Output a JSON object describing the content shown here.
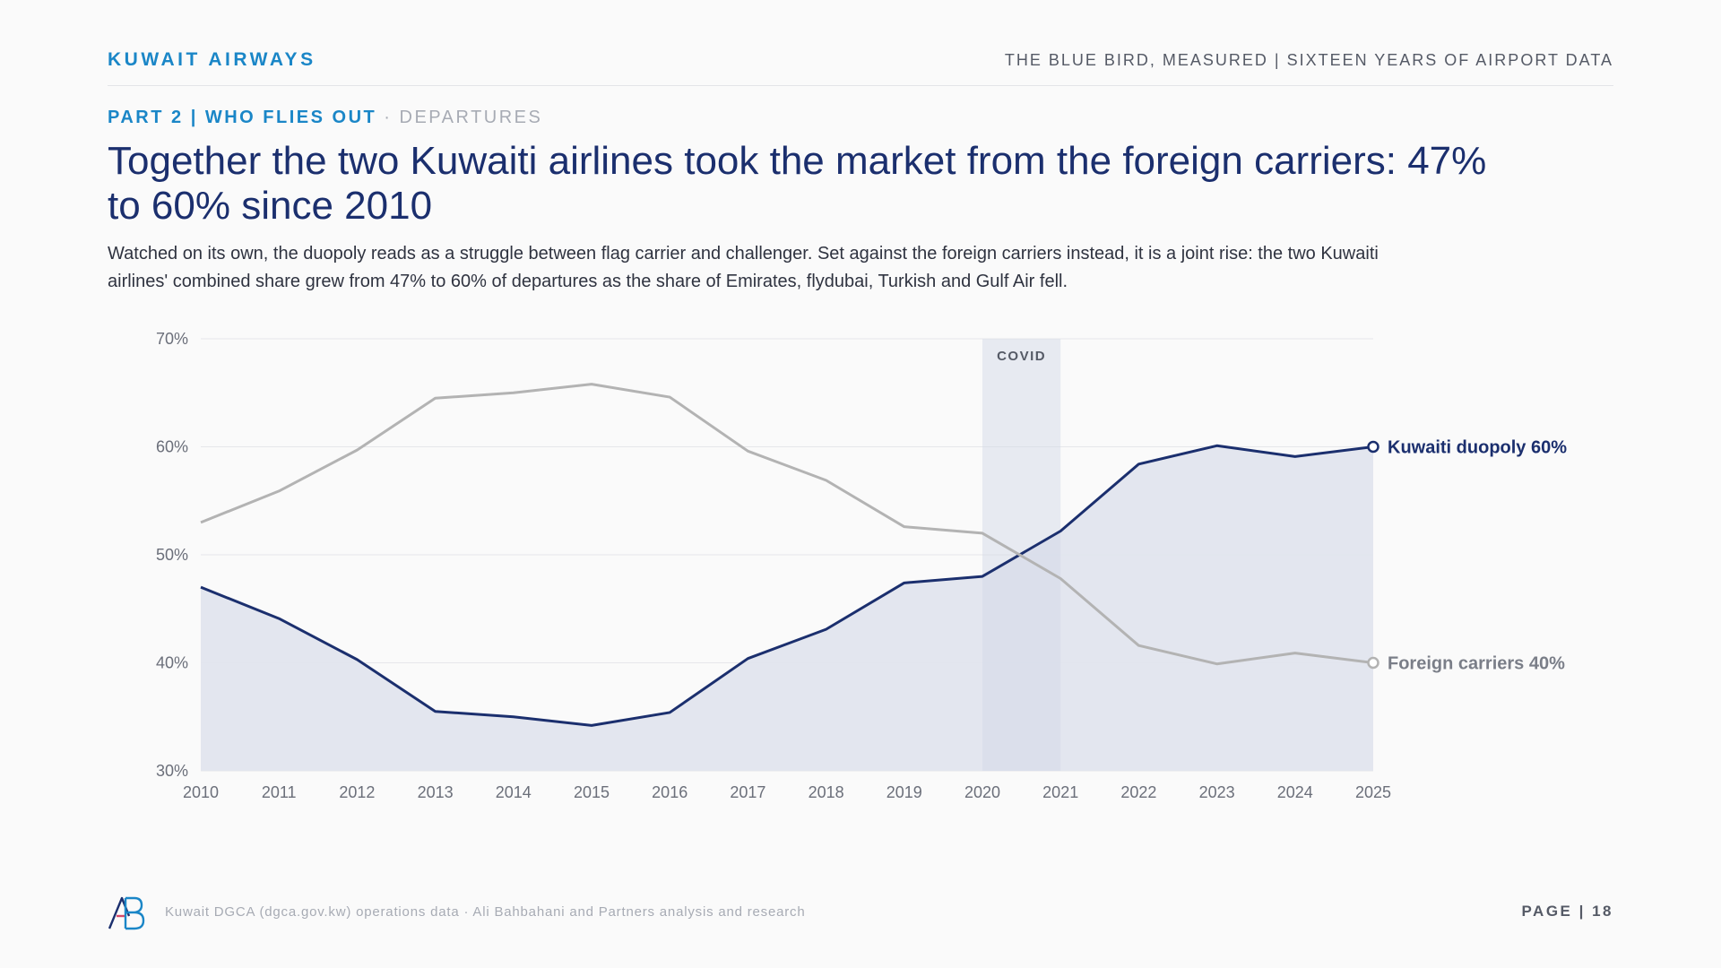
{
  "header": {
    "brand": "KUWAIT AIRWAYS",
    "series_title": "THE BLUE BIRD, MEASURED | SIXTEEN YEARS OF AIRPORT DATA"
  },
  "section": {
    "part": "PART 2 | WHO FLIES OUT",
    "separator": " · ",
    "sub": "DEPARTURES"
  },
  "headline": "Together the two Kuwaiti airlines took the market from the foreign carriers: 47% to 60% since 2010",
  "lede": "Watched on its own, the duopoly reads as a struggle between flag carrier and challenger. Set against the foreign carriers instead, it is a joint rise: the two Kuwaiti airlines' combined share grew from 47% to 60% of departures as the share of Emirates, flydubai, Turkish and Gulf Air fell.",
  "footer": {
    "source": "Kuwait DGCA (dgca.gov.kw) operations data · Ali Bahbahani and Partners analysis and research",
    "page": "PAGE | 18"
  },
  "colors": {
    "duopoly": "#1b2f6e",
    "foreign": "#b3b3b3",
    "area_fill": "#e2e5ee",
    "covid_band": "#d0d6e6",
    "accent": "#1a86c7"
  },
  "chart_data": {
    "type": "line",
    "x": [
      2010,
      2011,
      2012,
      2013,
      2014,
      2015,
      2016,
      2017,
      2018,
      2019,
      2020,
      2021,
      2022,
      2023,
      2024,
      2025
    ],
    "y_ticks": [
      "30%",
      "40%",
      "50%",
      "60%",
      "70%"
    ],
    "ylim": [
      30,
      70
    ],
    "grid": true,
    "series": [
      {
        "key": "duopoly",
        "name": "Kuwaiti duopoly",
        "end_label": "Kuwaiti duopoly 60%",
        "values": [
          47.0,
          44.1,
          40.3,
          35.5,
          35.0,
          34.2,
          35.4,
          40.4,
          43.1,
          47.4,
          48.0,
          52.2,
          58.4,
          60.1,
          59.1,
          60.0
        ],
        "filled": true
      },
      {
        "key": "foreign",
        "name": "Foreign carriers",
        "end_label": "Foreign carriers 40%",
        "values": [
          53.0,
          55.9,
          59.7,
          64.5,
          65.0,
          65.8,
          64.6,
          59.6,
          56.9,
          52.6,
          52.0,
          47.8,
          41.6,
          39.9,
          40.9,
          40.0
        ],
        "filled": false
      }
    ],
    "annotations": [
      {
        "label": "COVID",
        "x_start": 2020,
        "x_end": 2021
      }
    ]
  }
}
